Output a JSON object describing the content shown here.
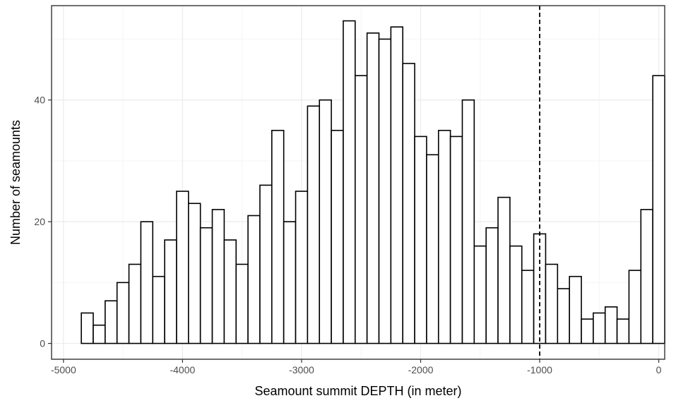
{
  "chart_data": {
    "type": "bar",
    "subtype": "histogram",
    "xlabel": "Seamount summit DEPTH (in meter)",
    "ylabel": "Number of seamounts",
    "xlim": [
      -5100,
      50
    ],
    "ylim": [
      -2.6,
      55.5
    ],
    "bin_width": 100,
    "bin_centers": [
      -4800,
      -4700,
      -4600,
      -4500,
      -4400,
      -4300,
      -4200,
      -4100,
      -4000,
      -3900,
      -3800,
      -3700,
      -3600,
      -3500,
      -3400,
      -3300,
      -3200,
      -3100,
      -3000,
      -2900,
      -2800,
      -2700,
      -2600,
      -2500,
      -2400,
      -2300,
      -2200,
      -2100,
      -2000,
      -1900,
      -1800,
      -1700,
      -1600,
      -1500,
      -1400,
      -1300,
      -1200,
      -1100,
      -1000,
      -900,
      -800,
      -700,
      -600,
      -500,
      -400,
      -300,
      -200,
      -100,
      0
    ],
    "values": [
      5,
      3,
      7,
      10,
      13,
      20,
      11,
      17,
      25,
      23,
      19,
      22,
      17,
      13,
      21,
      26,
      35,
      20,
      25,
      39,
      40,
      35,
      53,
      44,
      51,
      50,
      52,
      46,
      34,
      31,
      35,
      34,
      40,
      16,
      19,
      24,
      16,
      12,
      18,
      13,
      9,
      11,
      4,
      5,
      6,
      4,
      12,
      22,
      44
    ],
    "x_ticks": [
      -5000,
      -4000,
      -3000,
      -2000,
      -1000,
      0
    ],
    "x_tick_labels": [
      "-5000",
      "-4000",
      "-3000",
      "-2000",
      "-1000",
      "0"
    ],
    "y_ticks": [
      0,
      20,
      40
    ],
    "y_tick_labels": [
      "0",
      "20",
      "40"
    ],
    "reference_line": {
      "x": -1000,
      "style": "dashed",
      "color": "#000000"
    },
    "bar_fill": "#ffffff",
    "bar_stroke": "#000000",
    "grid": true,
    "grid_major_color": "#ebebeb",
    "grid_minor_color": "#f5f5f5",
    "panel_border_color": "#333333",
    "legend": "none"
  }
}
